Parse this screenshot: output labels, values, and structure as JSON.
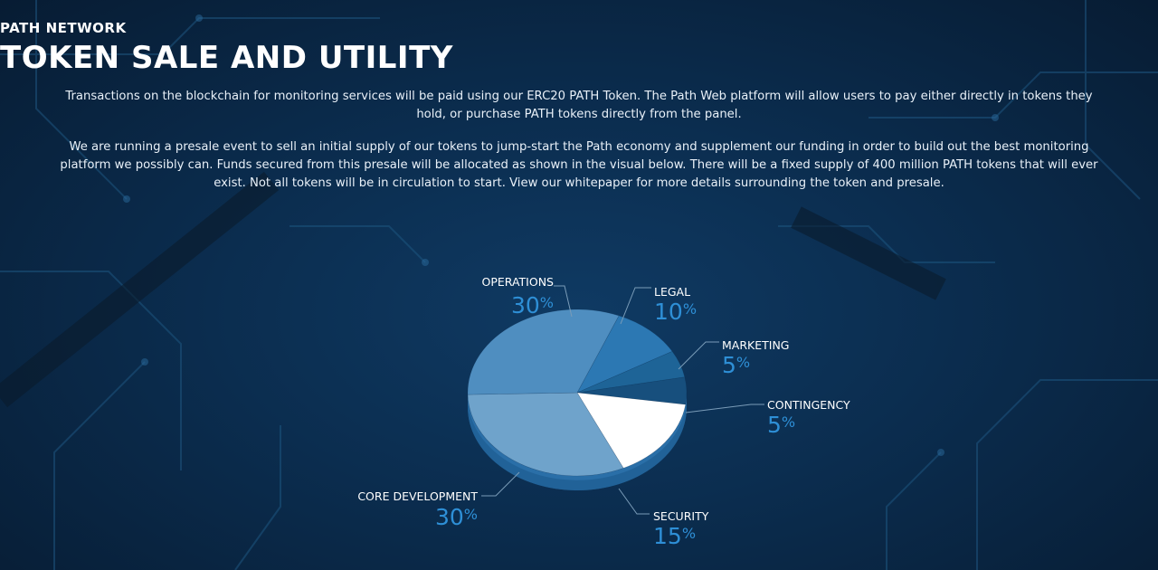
{
  "header": {
    "eyebrow": "PATH NETWORK",
    "title": "TOKEN SALE AND UTILITY"
  },
  "paragraphs": [
    "Transactions on the blockchain for monitoring services will be paid using our ERC20 PATH Token. The Path Web platform will allow users to pay either directly in tokens they hold, or purchase PATH tokens directly from the panel.",
    "We are running a presale event to sell an initial supply of our tokens to jump-start the Path economy and supplement our funding in order to build out the best monitoring platform we possibly can. Funds secured from this presale will be allocated as shown in the visual below. There will be a fixed supply of 400 million PATH tokens that will ever exist. Not all tokens will be in circulation to start. View our whitepaper for more details surrounding the token and presale."
  ],
  "colors": {
    "accent": "#2e8fd6",
    "background": "#0b2d4f"
  },
  "chart_data": {
    "type": "pie",
    "title": "",
    "unit": "%",
    "slices": [
      {
        "label": "LEGAL",
        "value": 10,
        "color": "#2c78b3"
      },
      {
        "label": "MARKETING",
        "value": 5,
        "color": "#1e6497"
      },
      {
        "label": "CONTINGENCY",
        "value": 5,
        "color": "#174f7d"
      },
      {
        "label": "SECURITY",
        "value": 15,
        "color": "#ffffff"
      },
      {
        "label": "CORE DEVELOPMENT",
        "value": 30,
        "color": "#6fa3cb"
      },
      {
        "label": "OPERATIONS",
        "value": 30,
        "color": "#4f8ec0"
      }
    ]
  }
}
